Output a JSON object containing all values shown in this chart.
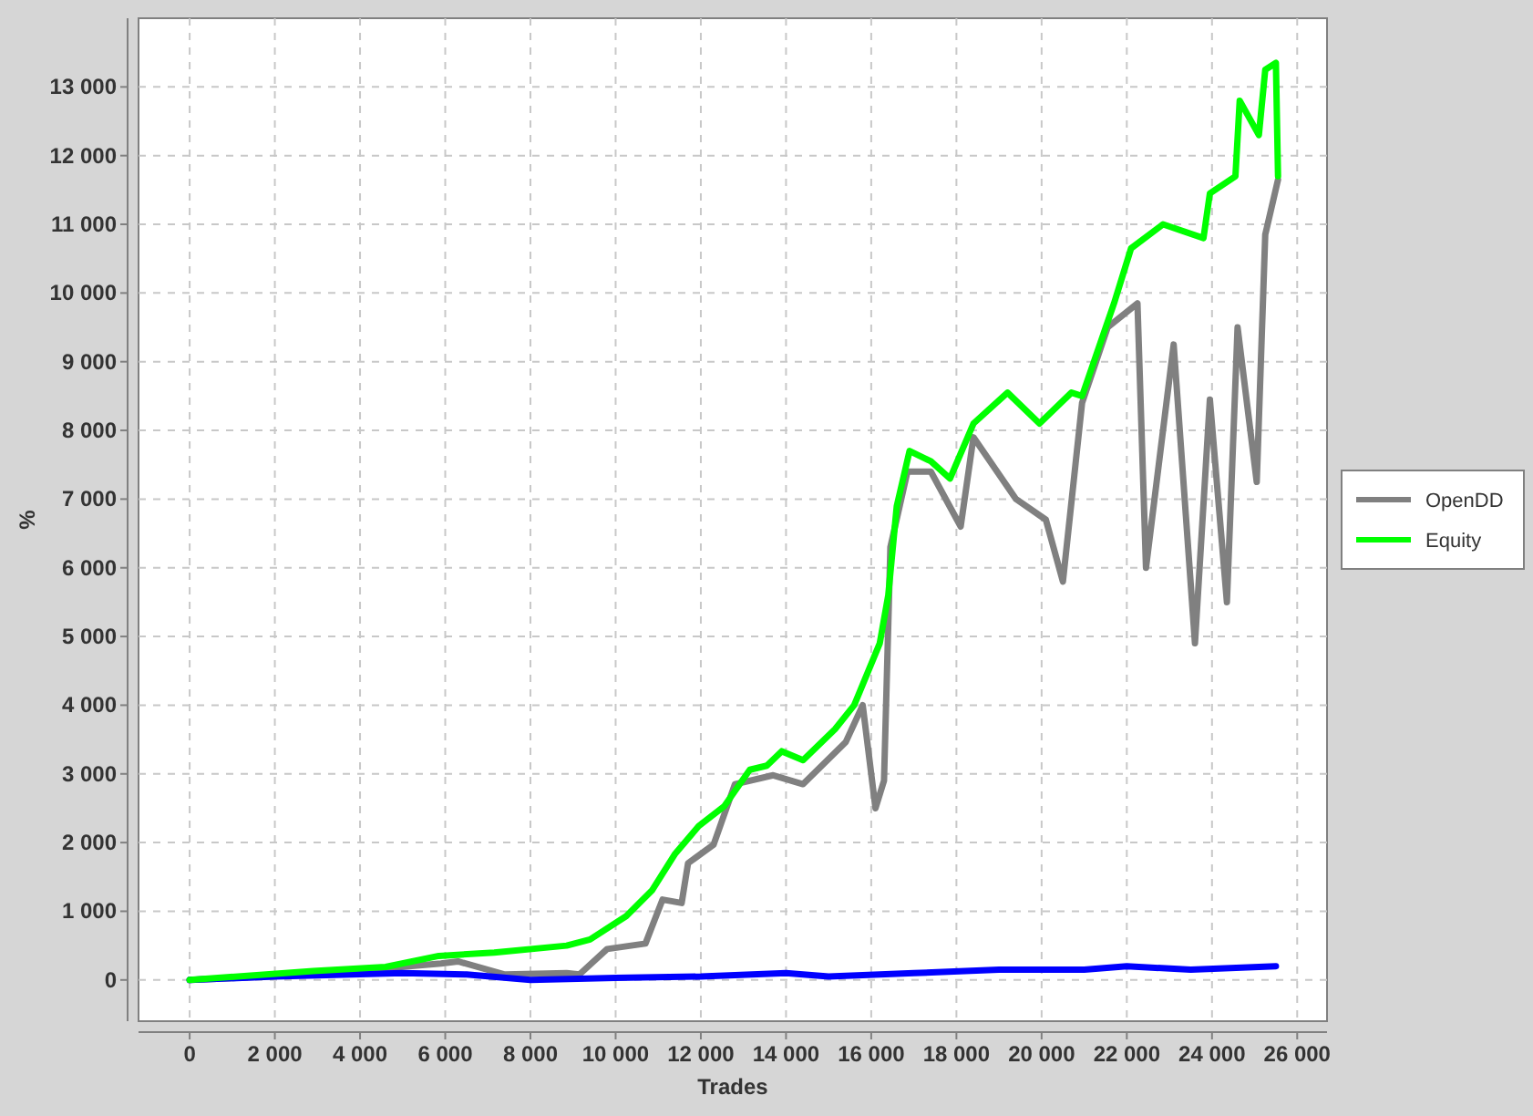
{
  "chart_data": {
    "type": "line",
    "xlabel": "Trades",
    "ylabel": "%",
    "xlim": [
      -1200,
      26700
    ],
    "ylim": [
      -600,
      14000
    ],
    "xticks": [
      0,
      {
        "value": 2000,
        "label": "2 000"
      },
      {
        "value": 4000,
        "label": "4 000"
      },
      {
        "value": 6000,
        "label": "6 000"
      },
      {
        "value": 8000,
        "label": "8 000"
      },
      {
        "value": 10000,
        "label": "10 000"
      },
      {
        "value": 12000,
        "label": "12 000"
      },
      {
        "value": 14000,
        "label": "14 000"
      },
      {
        "value": 16000,
        "label": "16 000"
      },
      {
        "value": 18000,
        "label": "18 000"
      },
      {
        "value": 20000,
        "label": "20 000"
      },
      {
        "value": 22000,
        "label": "22 000"
      },
      {
        "value": 24000,
        "label": "24 000"
      },
      {
        "value": 26000,
        "label": "26 000"
      }
    ],
    "yticks": [
      0,
      {
        "value": 1000,
        "label": "1 000"
      },
      {
        "value": 2000,
        "label": "2 000"
      },
      {
        "value": 3000,
        "label": "3 000"
      },
      {
        "value": 4000,
        "label": "4 000"
      },
      {
        "value": 5000,
        "label": "5 000"
      },
      {
        "value": 6000,
        "label": "6 000"
      },
      {
        "value": 7000,
        "label": "7 000"
      },
      {
        "value": 8000,
        "label": "8 000"
      },
      {
        "value": 9000,
        "label": "9 000"
      },
      {
        "value": 10000,
        "label": "10 000"
      },
      {
        "value": 11000,
        "label": "11 000"
      },
      {
        "value": 12000,
        "label": "12 000"
      },
      {
        "value": 13000,
        "label": "13 000"
      }
    ],
    "grid": true,
    "legend": "right",
    "line_style": "solid",
    "series": [
      {
        "name": "OpenDD",
        "color": "#808080",
        "x": [
          0,
          2900,
          5900,
          6300,
          7400,
          8850,
          9150,
          9800,
          10700,
          11100,
          11550,
          11700,
          12300,
          12800,
          13700,
          14400,
          15400,
          15800,
          16100,
          16300,
          16450,
          16850,
          17400,
          18100,
          18400,
          19400,
          20100,
          20500,
          20950,
          21550,
          22250,
          22450,
          23100,
          23600,
          23950,
          24350,
          24600,
          25050,
          25250,
          25550
        ],
        "values": [
          0,
          80,
          240,
          270,
          80,
          100,
          80,
          450,
          530,
          1170,
          1120,
          1700,
          1970,
          2850,
          2980,
          2850,
          3460,
          4000,
          2500,
          2900,
          6300,
          7400,
          7400,
          6600,
          7900,
          7000,
          6700,
          5800,
          8400,
          9500,
          9850,
          6000,
          9250,
          4900,
          8450,
          5500,
          9500,
          7250,
          10850,
          11650
        ]
      },
      {
        "color": "#0000ff",
        "x": [
          0,
          2000,
          5000,
          6500,
          8000,
          10000,
          12000,
          14000,
          15000,
          17000,
          19000,
          21000,
          22000,
          23500,
          25500
        ],
        "values": [
          0,
          50,
          100,
          80,
          0,
          30,
          50,
          100,
          50,
          100,
          150,
          150,
          200,
          150,
          200
        ]
      },
      {
        "name": "Equity",
        "color": "#00ff00",
        "x": [
          0,
          2900,
          4600,
          5850,
          7150,
          8850,
          9400,
          10250,
          10850,
          11400,
          11950,
          12550,
          13150,
          13550,
          13900,
          14400,
          15150,
          15600,
          16200,
          16400,
          16600,
          16900,
          17400,
          17850,
          18400,
          19200,
          19950,
          20700,
          20950,
          21700,
          22100,
          22850,
          23800,
          23950,
          24550,
          24650,
          25100,
          25250,
          25500,
          25550
        ],
        "values": [
          0,
          130,
          190,
          350,
          400,
          500,
          590,
          930,
          1300,
          1840,
          2240,
          2530,
          3060,
          3120,
          3330,
          3200,
          3650,
          4000,
          4900,
          5600,
          6900,
          7700,
          7550,
          7300,
          8100,
          8550,
          8100,
          8550,
          8500,
          9850,
          10650,
          11000,
          10800,
          11450,
          11700,
          12800,
          12300,
          13250,
          13350,
          11700
        ]
      }
    ]
  }
}
